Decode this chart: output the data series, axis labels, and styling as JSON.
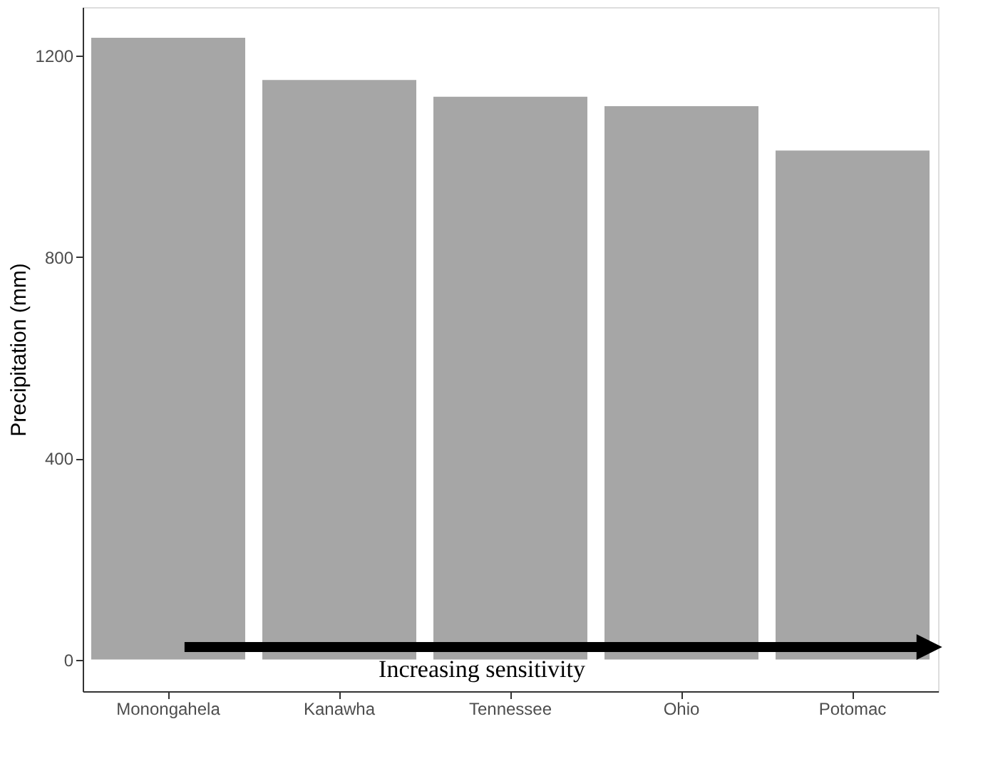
{
  "chart_data": {
    "type": "bar",
    "ylabel": "Precipitation (mm)",
    "categories": [
      "Monongahela",
      "Kanawha",
      "Tennessee",
      "Ohio",
      "Potomac"
    ],
    "values": [
      1236,
      1152,
      1119,
      1100,
      1012
    ],
    "color": "#a6a6a6",
    "ylim": [
      -63,
      1297
    ],
    "yticks": [
      0,
      400,
      800,
      1200
    ],
    "grid": false,
    "annotations": [
      "Increasing sensitivity"
    ]
  }
}
